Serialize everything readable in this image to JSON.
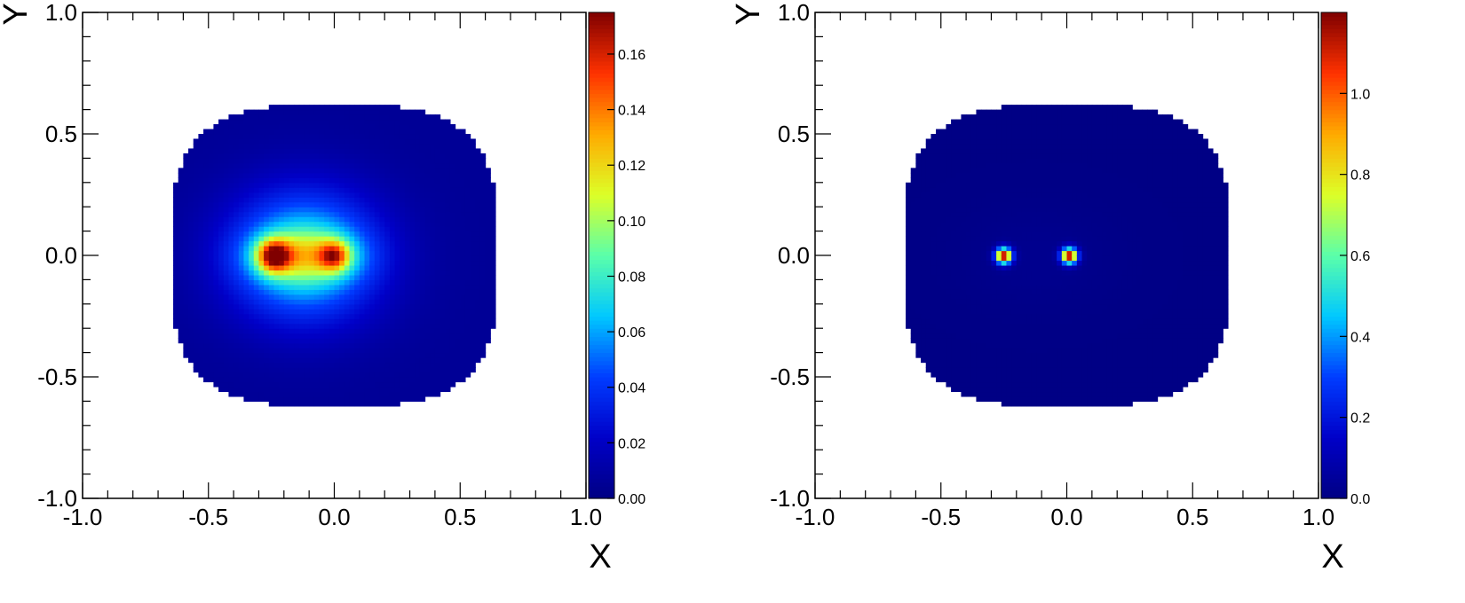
{
  "chart_data": [
    {
      "type": "heatmap",
      "title": "",
      "xlabel": "X",
      "ylabel": "Y",
      "xlim": [
        -1.0,
        1.0
      ],
      "ylim": [
        -1.0,
        1.0
      ],
      "x_ticks": [
        "-1.0",
        "-0.5",
        "0.0",
        "0.5",
        "1.0"
      ],
      "y_ticks": [
        "-1.0",
        "-0.5",
        "0.0",
        "0.5",
        "1.0"
      ],
      "colorbar": {
        "range": [
          0.0,
          0.175
        ],
        "ticks": [
          "0.00",
          "0.02",
          "0.04",
          "0.06",
          "0.08",
          "0.10",
          "0.12",
          "0.14",
          "0.16"
        ],
        "colormap": "jet"
      },
      "region": {
        "shape": "rounded-disk",
        "x_range": [
          -0.65,
          0.65
        ],
        "y_range": [
          -0.62,
          0.62
        ]
      },
      "background_level": 0.0,
      "peaks": [
        {
          "x": -0.24,
          "y": 0.0,
          "value": 0.175
        },
        {
          "x": 0.0,
          "y": 0.0,
          "value": 0.15
        }
      ],
      "halo_level": 0.06,
      "grid": false
    },
    {
      "type": "heatmap",
      "title": "",
      "xlabel": "X",
      "ylabel": "Y",
      "xlim": [
        -1.0,
        1.0
      ],
      "ylim": [
        -1.0,
        1.0
      ],
      "x_ticks": [
        "-1.0",
        "-0.5",
        "0.0",
        "0.5",
        "1.0"
      ],
      "y_ticks": [
        "-1.0",
        "-0.5",
        "0.0",
        "0.5",
        "1.0"
      ],
      "colorbar": {
        "range": [
          0.0,
          1.2
        ],
        "ticks": [
          "0.0",
          "0.2",
          "0.4",
          "0.6",
          "0.8",
          "1.0"
        ],
        "colormap": "jet"
      },
      "region": {
        "shape": "rounded-disk",
        "x_range": [
          -0.65,
          0.65
        ],
        "y_range": [
          -0.62,
          0.62
        ]
      },
      "background_level": 0.005,
      "peaks": [
        {
          "x": -0.25,
          "y": 0.0,
          "value": 1.2
        },
        {
          "x": 0.01,
          "y": 0.0,
          "value": 1.2
        }
      ],
      "halo_level": 0.0,
      "grid": false
    }
  ]
}
